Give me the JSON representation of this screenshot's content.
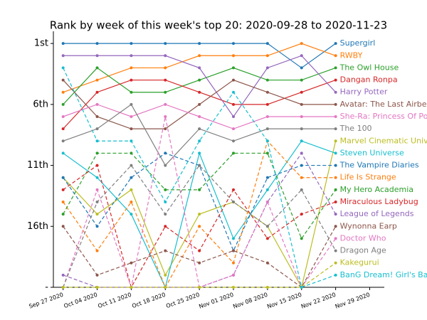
{
  "chart_data": {
    "type": "line",
    "title": "Rank by week of this week's top 20: 2020-09-28 to 2020-11-23",
    "x": [
      "2020-09-27",
      "2020-10-04",
      "2020-10-11",
      "2020-10-18",
      "2020-10-25",
      "2020-11-01",
      "2020-11-08",
      "2020-11-15",
      "2020-11-22"
    ],
    "xlim": [
      "2020-09-25",
      "2020-12-02"
    ],
    "xticks": [
      {
        "value": "2020-09-27",
        "label": "Sep 27 2020"
      },
      {
        "value": "2020-10-04",
        "label": "Oct 04 2020"
      },
      {
        "value": "2020-10-11",
        "label": "Oct 11 2020"
      },
      {
        "value": "2020-10-18",
        "label": "Oct 18 2020"
      },
      {
        "value": "2020-10-25",
        "label": "Oct 25 2020"
      },
      {
        "value": "2020-11-01",
        "label": "Nov 01 2020"
      },
      {
        "value": "2020-11-08",
        "label": "Nov 08 2020"
      },
      {
        "value": "2020-11-15",
        "label": "Nov 15 2020"
      },
      {
        "value": "2020-11-22",
        "label": "Nov 22 2020"
      },
      {
        "value": "2020-11-29",
        "label": "Nov 29 2020"
      }
    ],
    "ylim": [
      21,
      0
    ],
    "yticks": [
      {
        "value": 1,
        "label": "1st"
      },
      {
        "value": 6,
        "label": "6th"
      },
      {
        "value": 11,
        "label": "11th"
      },
      {
        "value": 16,
        "label": "16th"
      },
      {
        "value": 21,
        "label": "-"
      }
    ],
    "series": [
      {
        "name": "Supergirl",
        "color": "#1f77b4",
        "dash": false,
        "values": [
          1,
          1,
          1,
          1,
          1,
          1,
          1,
          3,
          1
        ]
      },
      {
        "name": "RWBY",
        "color": "#ff7f0e",
        "dash": false,
        "values": [
          5,
          4,
          3,
          3,
          2,
          2,
          2,
          1,
          2
        ]
      },
      {
        "name": "The Owl House",
        "color": "#2ca02c",
        "dash": false,
        "values": [
          6,
          3,
          5,
          5,
          4,
          3,
          4,
          4,
          3
        ]
      },
      {
        "name": "Dangan Ronpa",
        "color": "#d62728",
        "dash": false,
        "values": [
          8,
          5,
          4,
          4,
          5,
          6,
          6,
          5,
          4
        ]
      },
      {
        "name": "Harry Potter",
        "color": "#9467bd",
        "dash": false,
        "values": [
          2,
          2,
          2,
          2,
          3,
          7,
          3,
          2,
          5
        ]
      },
      {
        "name": "Avatar: The Last Airbender",
        "color": "#8c564b",
        "dash": false,
        "values": [
          4,
          7,
          8,
          8,
          6,
          4,
          5,
          6,
          6
        ]
      },
      {
        "name": "She-Ra: Princess Of Power",
        "color": "#e377c2",
        "dash": false,
        "values": [
          7,
          6,
          7,
          6,
          7,
          8,
          7,
          7,
          7
        ]
      },
      {
        "name": "The 100",
        "color": "#7f7f7f",
        "dash": false,
        "values": [
          9,
          8,
          6,
          11,
          8,
          9,
          8,
          8,
          8
        ]
      },
      {
        "name": "Marvel Cinematic Universe",
        "color": "#bcbd22",
        "dash": false,
        "values": [
          12,
          15,
          13,
          20,
          15,
          14,
          16,
          21,
          9
        ]
      },
      {
        "name": "Steven Universe",
        "color": "#17becf",
        "dash": false,
        "values": [
          10,
          12,
          15,
          21,
          10,
          17,
          13,
          9,
          10
        ]
      },
      {
        "name": "The Vampire Diaries",
        "color": "#1f77b4",
        "dash": true,
        "values": [
          12,
          16,
          12,
          10,
          11,
          18,
          12,
          11,
          11
        ]
      },
      {
        "name": "Life Is Strange",
        "color": "#ff7f0e",
        "dash": true,
        "values": [
          14,
          18,
          14,
          21,
          16,
          19,
          9,
          12,
          12
        ]
      },
      {
        "name": "My Hero Academia",
        "color": "#2ca02c",
        "dash": true,
        "values": [
          15,
          10,
          10,
          13,
          13,
          10,
          10,
          17,
          13
        ]
      },
      {
        "name": "Miraculous Ladybug",
        "color": "#d62728",
        "dash": true,
        "values": [
          13,
          11,
          21,
          16,
          18,
          13,
          17,
          15,
          14
        ]
      },
      {
        "name": "League of Legends",
        "color": "#9467bd",
        "dash": true,
        "values": [
          20,
          21,
          21,
          21,
          21,
          20,
          14,
          10,
          15
        ]
      },
      {
        "name": "Wynonna Earp",
        "color": "#8c564b",
        "dash": true,
        "values": [
          16,
          20,
          19,
          18,
          19,
          18,
          19,
          21,
          16
        ]
      },
      {
        "name": "Doctor Who",
        "color": "#e377c2",
        "dash": true,
        "values": [
          21,
          13,
          21,
          7,
          21,
          20,
          14,
          21,
          17
        ]
      },
      {
        "name": "Dragon Age",
        "color": "#7f7f7f",
        "dash": true,
        "values": [
          21,
          14,
          11,
          15,
          11,
          14,
          16,
          13,
          18
        ]
      },
      {
        "name": "Kakegurui",
        "color": "#bcbd22",
        "dash": true,
        "values": [
          21,
          21,
          21,
          21,
          21,
          21,
          21,
          21,
          19
        ]
      },
      {
        "name": "BanG Dream! Girl's Band Party!",
        "color": "#17becf",
        "dash": true,
        "values": [
          3,
          9,
          9,
          14,
          9,
          5,
          9,
          21,
          20
        ]
      }
    ]
  }
}
